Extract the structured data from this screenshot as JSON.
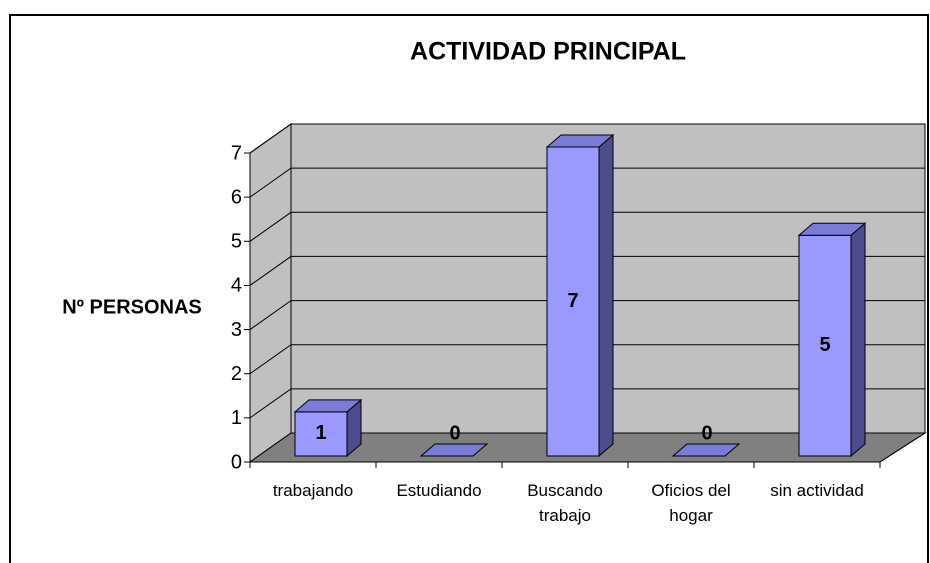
{
  "chart_data": {
    "type": "bar",
    "title": "ACTIVIDAD PRINCIPAL",
    "y_label": "Nº PERSONAS",
    "categories": [
      "trabajando",
      "Estudiando",
      "Buscando trabajo",
      "Oficios del hogar",
      "sin actividad"
    ],
    "values": [
      1,
      0,
      7,
      0,
      5
    ],
    "color": "#9999ff",
    "ylim": [
      0,
      7
    ],
    "yticks": [
      0,
      1,
      2,
      3,
      4,
      5,
      6,
      7
    ],
    "grid": true
  }
}
